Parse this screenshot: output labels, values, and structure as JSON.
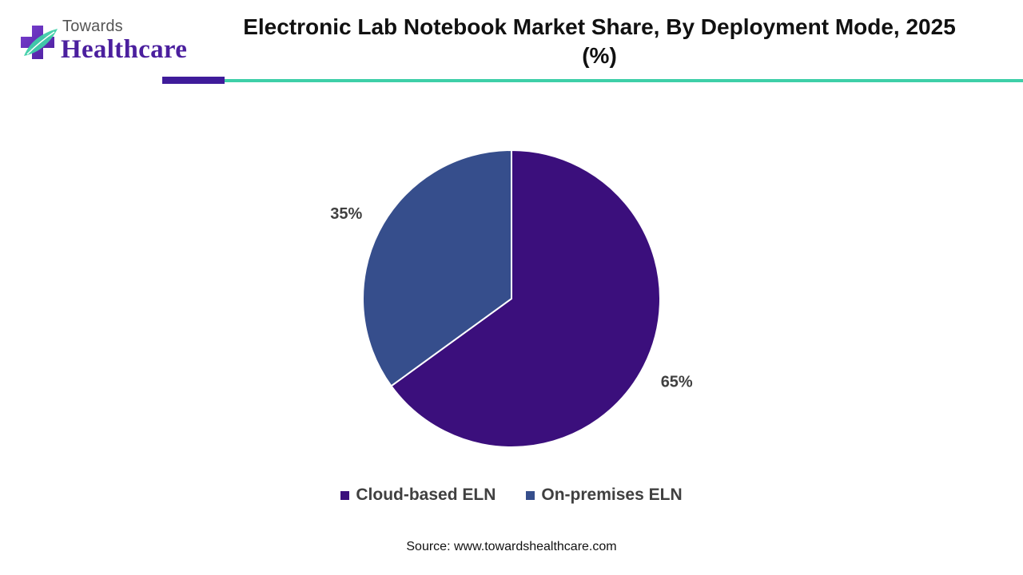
{
  "logo": {
    "top_text": "Towards",
    "bottom_text": "Healthcare",
    "icon": "medical-cross-leaf-icon"
  },
  "chart_data": {
    "type": "pie",
    "title": "Electronic Lab Notebook Market Share, By Deployment Mode, 2025 (%)",
    "categories": [
      "Cloud-based ELN",
      "On-premises ELN"
    ],
    "values": [
      65,
      35
    ],
    "labels": [
      "65%",
      "35%"
    ],
    "colors": [
      "#3b0f7c",
      "#364e8c"
    ],
    "legend_position": "bottom"
  },
  "source": "Source: www.towardshealthcare.com",
  "colors": {
    "accent_purple": "#3f1b9a",
    "accent_teal": "#3ecfa8"
  }
}
